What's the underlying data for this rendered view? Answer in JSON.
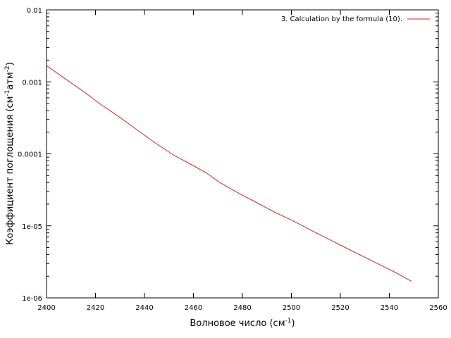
{
  "chart_data": {
    "type": "line",
    "title": "",
    "xlabel": {
      "main": "Волновое число (см",
      "sup": "-1",
      "end": ")"
    },
    "ylabel": {
      "part1": "Коэффициент поглощения (см",
      "sup1": "-1",
      "part2": "атм",
      "sup2": "-2",
      "end": ")"
    },
    "xlim": [
      2400,
      2560
    ],
    "ylim": [
      1e-06,
      0.01
    ],
    "yscale": "log",
    "grid": false,
    "legend_position": "top-right",
    "x_ticks": [
      "2400",
      "2420",
      "2440",
      "2460",
      "2480",
      "2500",
      "2520",
      "2540",
      "2560"
    ],
    "y_ticks": [
      "1e-06",
      "1e-05",
      "0.0001",
      "0.001",
      "0.01"
    ],
    "series": [
      {
        "name": "3. Calculation by the formula (10).",
        "color": "#e02020",
        "x": [
          2400,
          2408,
          2415,
          2422,
          2430,
          2437,
          2444,
          2452,
          2458,
          2465,
          2471,
          2478,
          2486,
          2493,
          2501,
          2508,
          2515,
          2522,
          2529,
          2536,
          2542,
          2549
        ],
        "y": [
          0.00168,
          0.00108,
          0.00074,
          0.00049,
          0.00032,
          0.000215,
          0.000145,
          9.55e-05,
          7.46e-05,
          5.5e-05,
          3.95e-05,
          2.89e-05,
          2.09e-05,
          1.56e-05,
          1.16e-05,
          8.7e-06,
          6.6e-06,
          5e-06,
          3.8e-06,
          2.9e-06,
          2.3e-06,
          1.7e-06
        ]
      }
    ]
  }
}
